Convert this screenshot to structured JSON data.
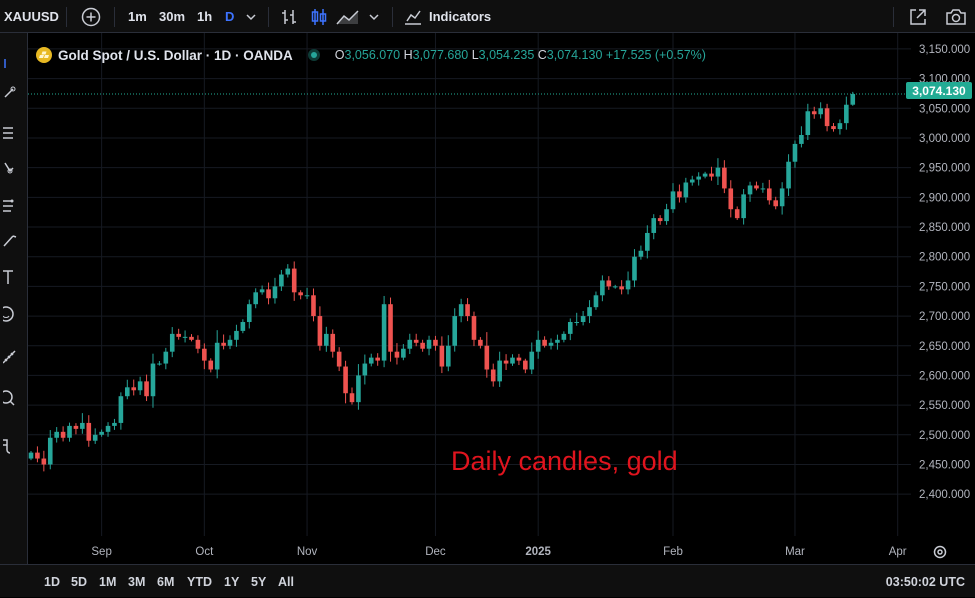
{
  "toolbar": {
    "symbol": "XAUUSD",
    "intervals": [
      "1m",
      "30m",
      "1h",
      "D"
    ],
    "active_interval": "D",
    "indicators_label": "Indicators"
  },
  "legend": {
    "title": "Gold Spot / U.S. Dollar · 1D · OANDA",
    "o_label": "O",
    "o_value": "3,056.070",
    "h_label": "H",
    "h_value": "3,077.680",
    "l_label": "L",
    "l_value": "3,054.235",
    "c_label": "C",
    "c_value": "3,074.130",
    "change": "+17.525 (+0.57%)"
  },
  "annotation": "Daily candles, gold",
  "last_price_label": "3,074.130",
  "range_buttons": [
    "1D",
    "5D",
    "1M",
    "3M",
    "6M",
    "YTD",
    "1Y",
    "5Y",
    "All"
  ],
  "clock": "03:50:02 UTC",
  "colors": {
    "up": "#26a69a",
    "down": "#ef5350",
    "annotation": "#e0141e",
    "accent": "#3d73ff"
  },
  "chart_data": {
    "type": "candlestick",
    "ylim": [
      2375,
      3160
    ],
    "y_ticks": [
      "3,150.000",
      "3,100.000",
      "3,050.000",
      "3,000.000",
      "2,950.000",
      "2,900.000",
      "2,850.000",
      "2,800.000",
      "2,750.000",
      "2,700.000",
      "2,650.000",
      "2,600.000",
      "2,550.000",
      "2,500.000",
      "2,450.000",
      "2,400.000"
    ],
    "y_tick_values": [
      3150,
      3100,
      3050,
      3000,
      2950,
      2900,
      2850,
      2800,
      2750,
      2700,
      2650,
      2600,
      2550,
      2500,
      2450,
      2400
    ],
    "x_labels": [
      "Sep",
      "Oct",
      "Nov",
      "Dec",
      "2025",
      "Feb",
      "Mar",
      "Apr"
    ],
    "last_price": 3074.13,
    "close": [
      2470,
      2460,
      2450,
      2495,
      2505,
      2495,
      2515,
      2510,
      2520,
      2490,
      2500,
      2505,
      2515,
      2520,
      2565,
      2580,
      2575,
      2590,
      2565,
      2620,
      2620,
      2640,
      2670,
      2665,
      2665,
      2660,
      2645,
      2625,
      2610,
      2655,
      2650,
      2660,
      2675,
      2690,
      2720,
      2740,
      2745,
      2730,
      2750,
      2770,
      2780,
      2740,
      2735,
      2735,
      2700,
      2650,
      2670,
      2640,
      2615,
      2570,
      2555,
      2600,
      2620,
      2630,
      2625,
      2720,
      2640,
      2630,
      2645,
      2660,
      2655,
      2645,
      2660,
      2650,
      2615,
      2650,
      2700,
      2720,
      2700,
      2660,
      2650,
      2610,
      2590,
      2625,
      2620,
      2630,
      2625,
      2610,
      2640,
      2660,
      2650,
      2655,
      2660,
      2670,
      2690,
      2690,
      2700,
      2715,
      2735,
      2760,
      2750,
      2750,
      2745,
      2760,
      2800,
      2810,
      2840,
      2865,
      2860,
      2880,
      2910,
      2900,
      2925,
      2930,
      2935,
      2940,
      2935,
      2950,
      2915,
      2880,
      2865,
      2905,
      2920,
      2915,
      2915,
      2895,
      2885,
      2915,
      2960,
      2990,
      3005,
      3045,
      3040,
      3050,
      3020,
      3015,
      3025,
      3056,
      3074
    ],
    "month_starts": [
      {
        "label": "Sep",
        "index": 11
      },
      {
        "label": "Oct",
        "index": 27
      },
      {
        "label": "Nov",
        "index": 43
      },
      {
        "label": "Dec",
        "index": 63
      },
      {
        "label": "2025",
        "index": 79
      },
      {
        "label": "Feb",
        "index": 100
      },
      {
        "label": "Mar",
        "index": 119
      },
      {
        "label": "Apr",
        "index": 135
      }
    ],
    "last_candle": {
      "open": 3056.07,
      "high": 3077.68,
      "low": 3054.235,
      "close": 3074.13
    }
  }
}
